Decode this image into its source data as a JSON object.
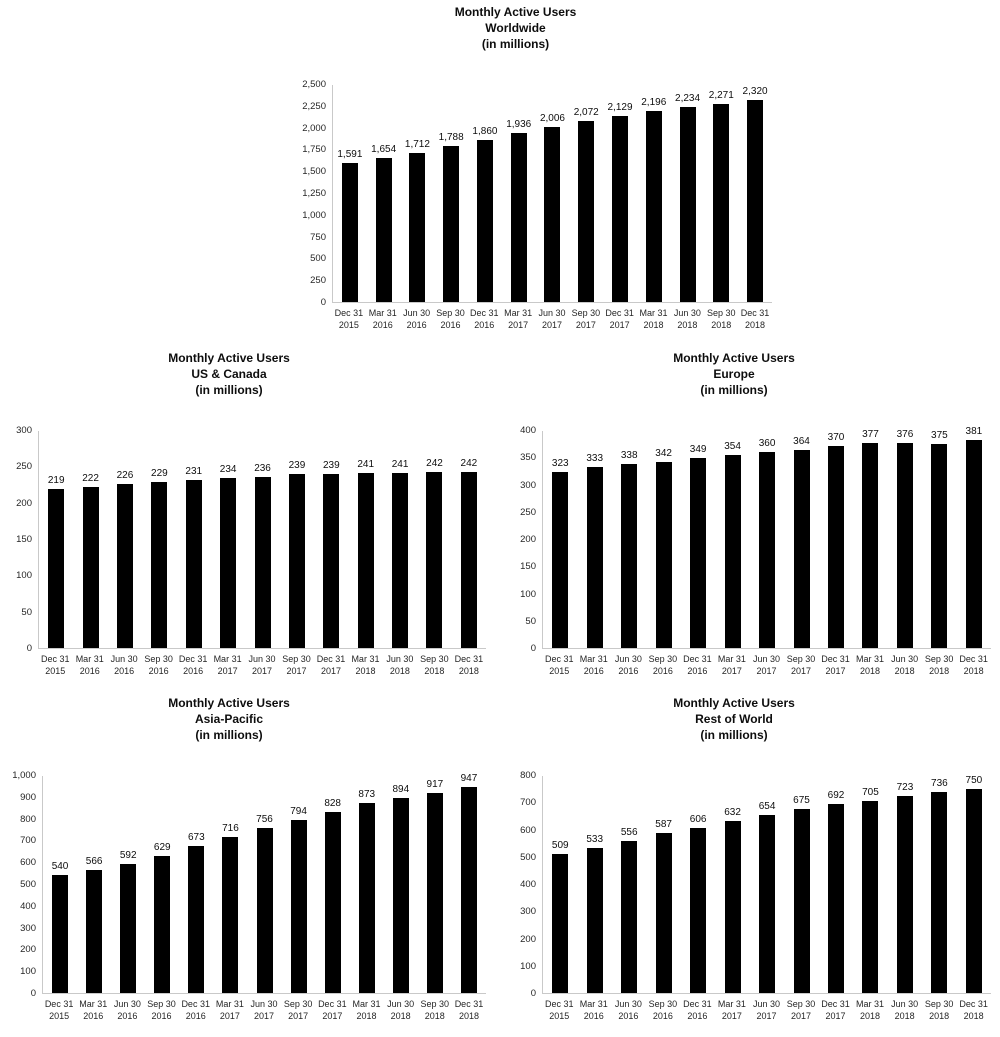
{
  "colors": {
    "bar": "#000000",
    "axis_line": "#c9c9c9",
    "text": "#000000"
  },
  "chart_data": [
    {
      "id": "worldwide",
      "type": "bar",
      "title": "Monthly Active Users Worldwide (in millions)",
      "title_lines": [
        "Monthly Active Users",
        "Worldwide",
        "(in millions)"
      ],
      "categories": [
        "Dec 31 2015",
        "Mar 31 2016",
        "Jun 30 2016",
        "Sep 30 2016",
        "Dec 31 2016",
        "Mar 31 2017",
        "Jun 30 2017",
        "Sep 30 2017",
        "Dec 31 2017",
        "Mar 31 2018",
        "Jun 30 2018",
        "Sep 30 2018",
        "Dec 31 2018"
      ],
      "values": [
        1591,
        1654,
        1712,
        1788,
        1860,
        1936,
        2006,
        2072,
        2129,
        2196,
        2234,
        2271,
        2320
      ],
      "value_labels": [
        "1,591",
        "1,654",
        "1,712",
        "1,788",
        "1,860",
        "1,936",
        "2,006",
        "2,072",
        "2,129",
        "2,196",
        "2,234",
        "2,271",
        "2,320"
      ],
      "ylim": [
        0,
        2500
      ],
      "ytick_step": 250,
      "yticks_desc": [
        "2,500",
        "2,250",
        "2,000",
        "1,750",
        "1,500",
        "1,250",
        "1,000",
        "750",
        "500",
        "250",
        "0"
      ],
      "grid": false,
      "legend": false
    },
    {
      "id": "us-canada",
      "type": "bar",
      "title": "Monthly Active Users US & Canada (in millions)",
      "title_lines": [
        "Monthly Active Users",
        "US & Canada",
        "(in millions)"
      ],
      "categories": [
        "Dec 31 2015",
        "Mar 31 2016",
        "Jun 30 2016",
        "Sep 30 2016",
        "Dec 31 2016",
        "Mar 31 2017",
        "Jun 30 2017",
        "Sep 30 2017",
        "Dec 31 2017",
        "Mar 31 2018",
        "Jun 30 2018",
        "Sep 30 2018",
        "Dec 31 2018"
      ],
      "values": [
        219,
        222,
        226,
        229,
        231,
        234,
        236,
        239,
        239,
        241,
        241,
        242,
        242
      ],
      "value_labels": [
        "219",
        "222",
        "226",
        "229",
        "231",
        "234",
        "236",
        "239",
        "239",
        "241",
        "241",
        "242",
        "242"
      ],
      "ylim": [
        0,
        300
      ],
      "ytick_step": 50,
      "yticks_desc": [
        "300",
        "250",
        "200",
        "150",
        "100",
        "50",
        "0"
      ],
      "grid": false,
      "legend": false
    },
    {
      "id": "europe",
      "type": "bar",
      "title": "Monthly Active Users Europe (in millions)",
      "title_lines": [
        "Monthly Active Users",
        "Europe",
        "(in millions)"
      ],
      "categories": [
        "Dec 31 2015",
        "Mar 31 2016",
        "Jun 30 2016",
        "Sep 30 2016",
        "Dec 31 2016",
        "Mar 31 2017",
        "Jun 30 2017",
        "Sep 30 2017",
        "Dec 31 2017",
        "Mar 31 2018",
        "Jun 30 2018",
        "Sep 30 2018",
        "Dec 31 2018"
      ],
      "values": [
        323,
        333,
        338,
        342,
        349,
        354,
        360,
        364,
        370,
        377,
        376,
        375,
        381
      ],
      "value_labels": [
        "323",
        "333",
        "338",
        "342",
        "349",
        "354",
        "360",
        "364",
        "370",
        "377",
        "376",
        "375",
        "381"
      ],
      "ylim": [
        0,
        400
      ],
      "ytick_step": 50,
      "yticks_desc": [
        "400",
        "350",
        "300",
        "250",
        "200",
        "150",
        "100",
        "50",
        "0"
      ],
      "grid": false,
      "legend": false
    },
    {
      "id": "asia-pacific",
      "type": "bar",
      "title": "Monthly Active Users Asia-Pacific (in millions)",
      "title_lines": [
        "Monthly Active Users",
        "Asia-Pacific",
        "(in millions)"
      ],
      "categories": [
        "Dec 31 2015",
        "Mar 31 2016",
        "Jun 30 2016",
        "Sep 30 2016",
        "Dec 31 2016",
        "Mar 31 2017",
        "Jun 30 2017",
        "Sep 30 2017",
        "Dec 31 2017",
        "Mar 31 2018",
        "Jun 30 2018",
        "Sep 30 2018",
        "Dec 31 2018"
      ],
      "values": [
        540,
        566,
        592,
        629,
        673,
        716,
        756,
        794,
        828,
        873,
        894,
        917,
        947
      ],
      "value_labels": [
        "540",
        "566",
        "592",
        "629",
        "673",
        "716",
        "756",
        "794",
        "828",
        "873",
        "894",
        "917",
        "947"
      ],
      "ylim": [
        0,
        1000
      ],
      "ytick_step": 100,
      "yticks_desc": [
        "1,000",
        "900",
        "800",
        "700",
        "600",
        "500",
        "400",
        "300",
        "200",
        "100",
        "0"
      ],
      "grid": false,
      "legend": false
    },
    {
      "id": "rest-of-world",
      "type": "bar",
      "title": "Monthly Active Users Rest of World (in millions)",
      "title_lines": [
        "Monthly Active Users",
        "Rest of World",
        "(in millions)"
      ],
      "categories": [
        "Dec 31 2015",
        "Mar 31 2016",
        "Jun 30 2016",
        "Sep 30 2016",
        "Dec 31 2016",
        "Mar 31 2017",
        "Jun 30 2017",
        "Sep 30 2017",
        "Dec 31 2017",
        "Mar 31 2018",
        "Jun 30 2018",
        "Sep 30 2018",
        "Dec 31 2018"
      ],
      "values": [
        509,
        533,
        556,
        587,
        606,
        632,
        654,
        675,
        692,
        705,
        723,
        736,
        750
      ],
      "value_labels": [
        "509",
        "533",
        "556",
        "587",
        "606",
        "632",
        "654",
        "675",
        "692",
        "705",
        "723",
        "736",
        "750"
      ],
      "ylim": [
        0,
        800
      ],
      "ytick_step": 100,
      "yticks_desc": [
        "800",
        "700",
        "600",
        "500",
        "400",
        "300",
        "200",
        "100",
        "0"
      ],
      "grid": false,
      "legend": false
    }
  ]
}
